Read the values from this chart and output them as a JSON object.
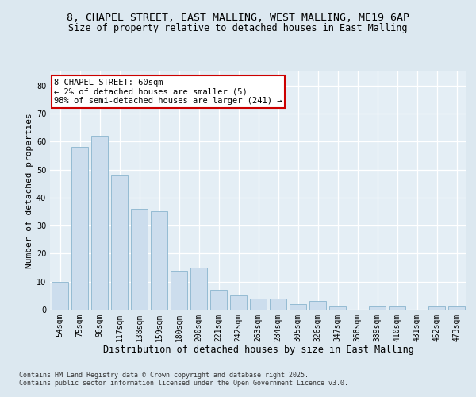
{
  "title1": "8, CHAPEL STREET, EAST MALLING, WEST MALLING, ME19 6AP",
  "title2": "Size of property relative to detached houses in East Malling",
  "xlabel": "Distribution of detached houses by size in East Malling",
  "ylabel": "Number of detached properties",
  "categories": [
    "54sqm",
    "75sqm",
    "96sqm",
    "117sqm",
    "138sqm",
    "159sqm",
    "180sqm",
    "200sqm",
    "221sqm",
    "242sqm",
    "263sqm",
    "284sqm",
    "305sqm",
    "326sqm",
    "347sqm",
    "368sqm",
    "389sqm",
    "410sqm",
    "431sqm",
    "452sqm",
    "473sqm"
  ],
  "values": [
    10,
    58,
    62,
    48,
    36,
    35,
    14,
    15,
    7,
    5,
    4,
    4,
    2,
    3,
    1,
    0,
    1,
    1,
    0,
    1,
    1
  ],
  "bar_color": "#ccdded",
  "bar_edge_color": "#8ab4ce",
  "annotation_text": "8 CHAPEL STREET: 60sqm\n← 2% of detached houses are smaller (5)\n98% of semi-detached houses are larger (241) →",
  "annotation_box_color": "#ffffff",
  "annotation_box_edge": "#cc0000",
  "ylim": [
    0,
    85
  ],
  "yticks": [
    0,
    10,
    20,
    30,
    40,
    50,
    60,
    70,
    80
  ],
  "bg_color": "#dce8f0",
  "plot_bg_color": "#e4eef5",
  "grid_color": "#ffffff",
  "footer": "Contains HM Land Registry data © Crown copyright and database right 2025.\nContains public sector information licensed under the Open Government Licence v3.0.",
  "title1_fontsize": 9.5,
  "title2_fontsize": 8.5,
  "xlabel_fontsize": 8.5,
  "ylabel_fontsize": 8,
  "tick_fontsize": 7,
  "annotation_fontsize": 7.5,
  "footer_fontsize": 6
}
